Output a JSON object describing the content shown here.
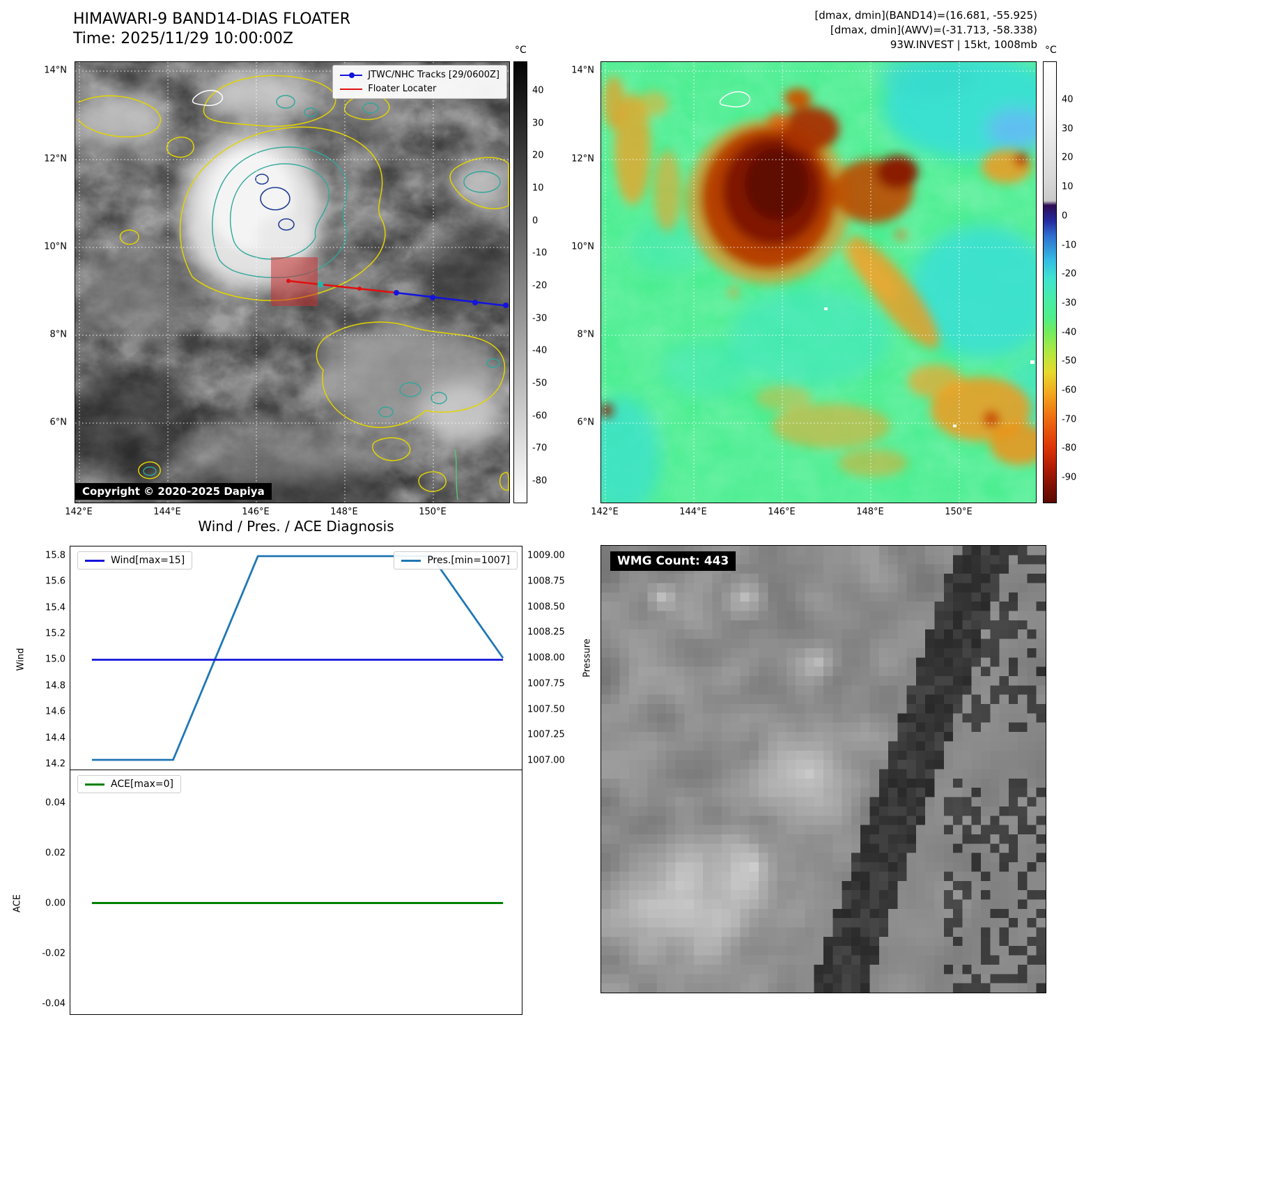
{
  "band14": {
    "title1": "HIMAWARI-9 BAND14-DIAS FLOATER",
    "title2": "Time: 2025/11/29 10:00:00Z",
    "legend_track": "JTWC/NHC Tracks [29/0600Z]",
    "legend_floater": "Floater Locater",
    "copyright": "Copyright © 2020-2025 Dapiya",
    "colorbar_unit": "°C",
    "colorbar_ticks": [
      "40",
      "30",
      "20",
      "10",
      "0",
      "-10",
      "-20",
      "-30",
      "-40",
      "-50",
      "-60",
      "-70",
      "-80"
    ],
    "x_ticks": [
      "142°E",
      "144°E",
      "146°E",
      "148°E",
      "150°E"
    ],
    "y_ticks": [
      "14°N",
      "12°N",
      "10°N",
      "8°N",
      "6°N"
    ]
  },
  "awv": {
    "header1": "[dmax, dmin](BAND14)=(16.681, -55.925)",
    "header2": "[dmax, dmin](AWV)=(-31.713, -58.338)",
    "header3": "93W.INVEST | 15kt, 1008mb",
    "colorbar_unit": "°C",
    "colorbar_ticks": [
      "40",
      "30",
      "20",
      "10",
      "0",
      "-10",
      "-20",
      "-30",
      "-40",
      "-50",
      "-60",
      "-70",
      "-80",
      "-90"
    ],
    "x_ticks": [
      "142°E",
      "144°E",
      "146°E",
      "148°E",
      "150°E"
    ],
    "y_ticks": [
      "14°N",
      "12°N",
      "10°N",
      "8°N",
      "6°N"
    ]
  },
  "diagnosis": {
    "title": "Wind / Pres. / ACE Diagnosis",
    "wind_legend": "Wind[max=15]",
    "pres_legend": "Pres.[min=1007]",
    "ace_legend": "ACE[max=0]",
    "wind_label": "Wind",
    "pressure_label": "Pressure",
    "ace_label": "ACE",
    "wind_ticks": [
      "15.8",
      "15.6",
      "15.4",
      "15.2",
      "15.0",
      "14.8",
      "14.6",
      "14.4",
      "14.2"
    ],
    "pressure_ticks": [
      "1009.00",
      "1008.75",
      "1008.50",
      "1008.25",
      "1008.00",
      "1007.75",
      "1007.50",
      "1007.25",
      "1007.00"
    ],
    "ace_ticks": [
      "0.04",
      "0.02",
      "0.00",
      "-0.02",
      "-0.04"
    ]
  },
  "wmg": {
    "count_label": "WMG Count: 443"
  },
  "chart_data": [
    {
      "type": "line",
      "title": "Wind / Pres. / ACE Diagnosis",
      "x_normalized": [
        0,
        0.2,
        0.4,
        0.82,
        1.0
      ],
      "series": [
        {
          "name": "Wind[max=15]",
          "axis": "Wind (left)",
          "color": "#1414dd",
          "values": [
            15,
            15,
            15,
            15,
            15
          ]
        },
        {
          "name": "Pres.[min=1007]",
          "axis": "Pressure (right)",
          "color": "#1f77b4",
          "values": [
            1007,
            1007,
            1009,
            1009,
            1008
          ]
        }
      ],
      "ylabel_left": "Wind",
      "ylim_left": [
        14.2,
        15.8
      ],
      "ylabel_right": "Pressure",
      "ylim_right": [
        1007.0,
        1009.0
      ],
      "grid": false,
      "legend_position": "upper left and upper right"
    },
    {
      "type": "line",
      "x_normalized": [
        0,
        1
      ],
      "series": [
        {
          "name": "ACE[max=0]",
          "color": "#008000",
          "values": [
            0,
            0
          ]
        }
      ],
      "ylabel": "ACE",
      "ylim": [
        -0.05,
        0.05
      ],
      "grid": false,
      "legend_position": "upper left"
    },
    {
      "type": "heatmap",
      "title": "HIMAWARI-9 BAND14-DIAS FLOATER infrared image",
      "x_ticks": [
        "142°E",
        "144°E",
        "146°E",
        "148°E",
        "150°E"
      ],
      "y_ticks": [
        "14°N",
        "12°N",
        "10°N",
        "8°N",
        "6°N"
      ],
      "colorbar_unit": "°C",
      "colorbar_range": [
        40,
        -80
      ],
      "colormap": "inverted grayscale with yellow/teal/navy BD contours"
    },
    {
      "type": "heatmap",
      "title": "AWV color-enhanced image",
      "x_ticks": [
        "142°E",
        "144°E",
        "146°E",
        "148°E",
        "150°E"
      ],
      "y_ticks": [
        "14°N",
        "12°N",
        "10°N",
        "8°N",
        "6°N"
      ],
      "colorbar_unit": "°C",
      "colorbar_range": [
        40,
        -90
      ],
      "colormap": "white-purple-blue-cyan-green-yellow-orange-red enhancement"
    }
  ]
}
